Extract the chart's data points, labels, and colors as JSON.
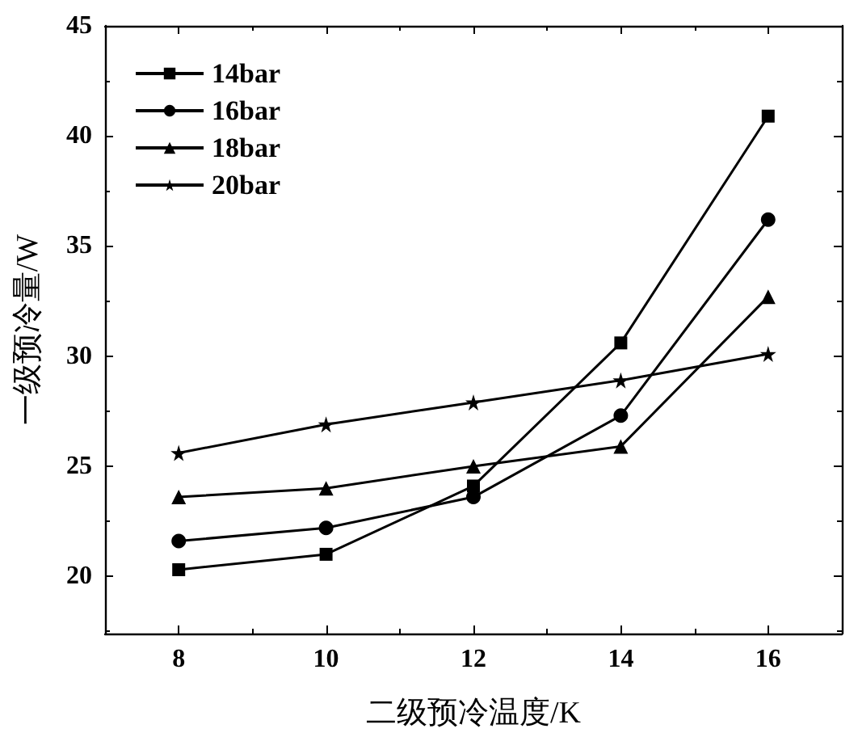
{
  "chart_data": {
    "type": "line",
    "xlabel": "二级预冷温度/K",
    "ylabel": "一级预冷量/W",
    "x": [
      8,
      10,
      12,
      14,
      16
    ],
    "series": [
      {
        "name": "14bar",
        "color": "#000000",
        "marker": "square",
        "values": [
          20.3,
          21.0,
          24.1,
          30.6,
          40.9
        ]
      },
      {
        "name": "16bar",
        "color": "#000000",
        "marker": "circle",
        "values": [
          21.6,
          22.2,
          23.6,
          27.3,
          36.2
        ]
      },
      {
        "name": "18bar",
        "color": "#000000",
        "marker": "triangle",
        "values": [
          23.6,
          24.0,
          25.0,
          25.9,
          32.7
        ]
      },
      {
        "name": "20bar",
        "color": "#000000",
        "marker": "star",
        "values": [
          25.6,
          26.9,
          27.9,
          28.9,
          30.1
        ]
      }
    ],
    "xlim": [
      7,
      17
    ],
    "xticks": [
      8,
      10,
      12,
      14,
      16
    ],
    "ylim": [
      17.4,
      45
    ],
    "yticks": [
      20,
      25,
      30,
      35,
      40,
      45
    ],
    "grid": false,
    "legend": "top left",
    "line_style": "solid"
  }
}
